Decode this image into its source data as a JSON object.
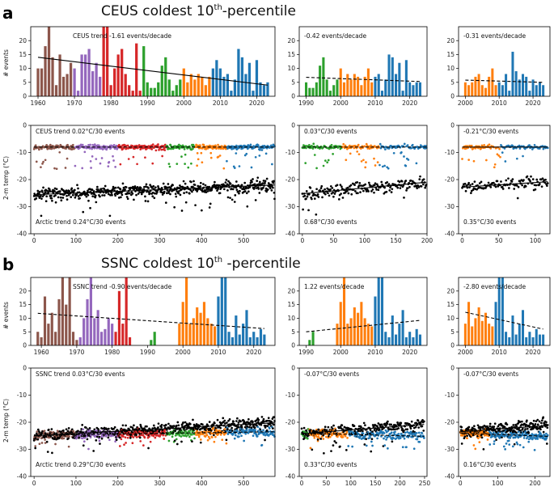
{
  "figure": {
    "panel_a_label": "a",
    "panel_b_label": "b",
    "title_a": {
      "pre": "CEUS coldest 10",
      "sup": "th",
      "post": "-percentile"
    },
    "title_b": {
      "pre": "SSNC coldest 10",
      "sup": "th",
      "post": " -percentile"
    },
    "ylabel_events": "# events",
    "ylabel_temp": "2-m temp (°C)"
  },
  "colors": {
    "brown": "#8c564b",
    "purple": "#9467bd",
    "red": "#d62728",
    "green": "#2ca02c",
    "orange": "#ff7f0e",
    "blue": "#1f77b4",
    "black": "#000000"
  },
  "chart_data": [
    {
      "id": "a-hist-full",
      "type": "bar",
      "section": "a",
      "row": "hist",
      "x_range": [
        1958,
        2025
      ],
      "ylim": [
        0,
        25
      ],
      "xticks": [
        1960,
        1970,
        1980,
        1990,
        2000,
        2010,
        2020
      ],
      "yticks": [
        0,
        5,
        10,
        15,
        20
      ],
      "annotation": "CEUS trend -1.61 events/decade",
      "trend": {
        "start": 14,
        "end": 4,
        "style": "solid"
      },
      "eras": [
        {
          "from": 1960,
          "to": 1969,
          "color": "brown"
        },
        {
          "from": 1970,
          "to": 1977,
          "color": "purple"
        },
        {
          "from": 1978,
          "to": 1988,
          "color": "red"
        },
        {
          "from": 1989,
          "to": 1999,
          "color": "green"
        },
        {
          "from": 2000,
          "to": 2007,
          "color": "orange"
        },
        {
          "from": 2008,
          "to": 2023,
          "color": "blue"
        }
      ],
      "years": [
        1960,
        1961,
        1962,
        1963,
        1964,
        1965,
        1966,
        1967,
        1968,
        1969,
        1970,
        1971,
        1972,
        1973,
        1974,
        1975,
        1976,
        1977,
        1978,
        1979,
        1980,
        1981,
        1982,
        1983,
        1984,
        1985,
        1986,
        1987,
        1988,
        1989,
        1990,
        1991,
        1992,
        1993,
        1994,
        1995,
        1996,
        1997,
        1998,
        1999,
        2000,
        2001,
        2002,
        2003,
        2004,
        2005,
        2006,
        2007,
        2008,
        2009,
        2010,
        2011,
        2012,
        2013,
        2014,
        2015,
        2016,
        2017,
        2018,
        2019,
        2020,
        2021,
        2022,
        2023
      ],
      "values": [
        10,
        10,
        18,
        25,
        14,
        4,
        15,
        7,
        8,
        12,
        10,
        2,
        15,
        15,
        17,
        9,
        12,
        7,
        25,
        25,
        4,
        10,
        15,
        17,
        8,
        4,
        2,
        19,
        2,
        18,
        5,
        3,
        3,
        5,
        11,
        14,
        6,
        2,
        4,
        6,
        10,
        5,
        8,
        6,
        8,
        7,
        4,
        7,
        10,
        13,
        10,
        7,
        8,
        2,
        6,
        17,
        14,
        8,
        12,
        2,
        13,
        5,
        4,
        5
      ]
    },
    {
      "id": "a-hist-mid",
      "type": "bar",
      "section": "a",
      "row": "hist",
      "x_range": [
        1988,
        2025
      ],
      "ylim": [
        0,
        25
      ],
      "xticks": [
        1990,
        2000,
        2010,
        2020
      ],
      "annotation": "-0.42 events/decade",
      "trend": {
        "start": 6.8,
        "end": 5.3,
        "style": "dashed"
      },
      "eras": [
        {
          "from": 1990,
          "to": 1999,
          "color": "green"
        },
        {
          "from": 2000,
          "to": 2009,
          "color": "orange"
        },
        {
          "from": 2010,
          "to": 2023,
          "color": "blue"
        }
      ],
      "years": [
        1990,
        1991,
        1992,
        1993,
        1994,
        1995,
        1996,
        1997,
        1998,
        1999,
        2000,
        2001,
        2002,
        2003,
        2004,
        2005,
        2006,
        2007,
        2008,
        2009,
        2010,
        2011,
        2012,
        2013,
        2014,
        2015,
        2016,
        2017,
        2018,
        2019,
        2020,
        2021,
        2022,
        2023
      ],
      "values": [
        5,
        3,
        3,
        5,
        11,
        14,
        6,
        2,
        4,
        6,
        10,
        5,
        8,
        6,
        8,
        7,
        4,
        7,
        10,
        5,
        7,
        8,
        2,
        6,
        15,
        14,
        8,
        12,
        2,
        13,
        5,
        4,
        5,
        5
      ]
    },
    {
      "id": "a-hist-late",
      "type": "bar",
      "section": "a",
      "row": "hist",
      "x_range": [
        1998,
        2025
      ],
      "ylim": [
        0,
        25
      ],
      "xticks": [
        2000,
        2010,
        2020
      ],
      "annotation": "-0.31 events/decade",
      "trend": {
        "start": 5.8,
        "end": 5.0,
        "style": "dashed"
      },
      "eras": [
        {
          "from": 2000,
          "to": 2009,
          "color": "orange"
        },
        {
          "from": 2010,
          "to": 2023,
          "color": "blue"
        }
      ],
      "years": [
        2000,
        2001,
        2002,
        2003,
        2004,
        2005,
        2006,
        2007,
        2008,
        2009,
        2010,
        2011,
        2012,
        2013,
        2014,
        2015,
        2016,
        2017,
        2018,
        2019,
        2020,
        2021,
        2022,
        2023
      ],
      "values": [
        5,
        4,
        5,
        7,
        8,
        4,
        3,
        7,
        10,
        4,
        5,
        4,
        8,
        2,
        16,
        9,
        6,
        8,
        7,
        2,
        6,
        4,
        5,
        4
      ]
    },
    {
      "id": "a-temp-full",
      "type": "scatter",
      "section": "a",
      "row": "temp",
      "x_range": [
        -8,
        575
      ],
      "ylim": [
        -40,
        0
      ],
      "xticks": [
        0,
        100,
        200,
        300,
        400,
        500
      ],
      "yticks": [
        -40,
        -30,
        -20,
        -10,
        0
      ],
      "n": 575,
      "ceus_level": -8,
      "arctic_start": -25.6,
      "arctic_end": -22.0,
      "ceus_trend_style": "dashed",
      "arctic_trend_style": "solid",
      "ceus_label": "CEUS trend 0.02°C/30 events",
      "arctic_label": "Arctic trend 0.24°C/30 events",
      "segments": [
        {
          "to": 0.17,
          "color": "brown"
        },
        {
          "to": 0.35,
          "color": "purple"
        },
        {
          "to": 0.55,
          "color": "red"
        },
        {
          "to": 0.67,
          "color": "green"
        },
        {
          "to": 0.8,
          "color": "orange"
        },
        {
          "to": 1.0,
          "color": "blue"
        }
      ],
      "seed": 11
    },
    {
      "id": "a-temp-mid",
      "type": "scatter",
      "section": "a",
      "row": "temp",
      "x_range": [
        -5,
        200
      ],
      "ylim": [
        -40,
        0
      ],
      "xticks": [
        0,
        50,
        100,
        150,
        200
      ],
      "n": 200,
      "ceus_level": -8,
      "arctic_start": -25.2,
      "arctic_end": -21.0,
      "ceus_trend_style": "dashed",
      "arctic_trend_style": "solid",
      "ceus_label": "0.03°C/30 events",
      "arctic_label": "0.68°C/30 events",
      "segments": [
        {
          "to": 0.32,
          "color": "green"
        },
        {
          "to": 0.62,
          "color": "orange"
        },
        {
          "to": 1.0,
          "color": "blue"
        }
      ],
      "seed": 23
    },
    {
      "id": "a-temp-late",
      "type": "scatter",
      "section": "a",
      "row": "temp",
      "x_range": [
        -5,
        120
      ],
      "ylim": [
        -40,
        0
      ],
      "xticks": [
        0,
        50,
        100
      ],
      "n": 118,
      "ceus_level": -8,
      "arctic_start": -22.8,
      "arctic_end": -20.8,
      "ceus_trend_style": "solid",
      "arctic_trend_style": "solid",
      "ceus_label": "-0.21°C/30 events",
      "arctic_label": "0.35°C/30 events",
      "segments": [
        {
          "to": 0.45,
          "color": "orange"
        },
        {
          "to": 1.0,
          "color": "blue"
        }
      ],
      "seed": 37
    },
    {
      "id": "b-hist-full",
      "type": "bar",
      "section": "b",
      "row": "hist",
      "x_range": [
        1957,
        2026
      ],
      "ylim": [
        0,
        25
      ],
      "xticks": [
        1960,
        1970,
        1980,
        1990,
        2000,
        2010,
        2020
      ],
      "yticks": [
        0,
        5,
        10,
        15,
        20
      ],
      "annotation": "SSNC trend -0.90 events/decade",
      "trend": {
        "start": 11.8,
        "end": 6.2,
        "style": "dashed"
      },
      "eras": [
        {
          "from": 1959,
          "to": 1970,
          "color": "brown"
        },
        {
          "from": 1971,
          "to": 1980,
          "color": "purple"
        },
        {
          "from": 1981,
          "to": 1985,
          "color": "red"
        },
        {
          "from": 1986,
          "to": 1998,
          "color": "green"
        },
        {
          "from": 1999,
          "to": 2009,
          "color": "orange"
        },
        {
          "from": 2010,
          "to": 2023,
          "color": "blue"
        }
      ],
      "years": [
        1959,
        1960,
        1961,
        1962,
        1963,
        1964,
        1965,
        1966,
        1967,
        1968,
        1969,
        1970,
        1971,
        1972,
        1973,
        1974,
        1975,
        1976,
        1977,
        1978,
        1979,
        1980,
        1981,
        1982,
        1983,
        1984,
        1985,
        1986,
        1987,
        1988,
        1989,
        1990,
        1991,
        1992,
        1993,
        1994,
        1995,
        1996,
        1997,
        1998,
        1999,
        2000,
        2001,
        2002,
        2003,
        2004,
        2005,
        2006,
        2007,
        2008,
        2009,
        2010,
        2011,
        2012,
        2013,
        2014,
        2015,
        2016,
        2017,
        2018,
        2019,
        2020,
        2021,
        2022,
        2023
      ],
      "values": [
        5,
        3,
        18,
        8,
        12,
        5,
        17,
        25,
        15,
        25,
        5,
        2,
        3,
        10,
        17,
        25,
        10,
        13,
        5,
        6,
        10,
        8,
        5,
        20,
        8,
        25,
        3,
        0,
        0,
        0,
        0,
        0,
        2,
        5,
        0,
        0,
        0,
        0,
        0,
        0,
        8,
        16,
        25,
        8,
        10,
        14,
        12,
        16,
        10,
        8,
        7,
        18,
        25,
        25,
        5,
        3,
        11,
        4,
        8,
        13,
        3,
        5,
        3,
        6,
        4
      ]
    },
    {
      "id": "b-hist-mid",
      "type": "bar",
      "section": "b",
      "row": "hist",
      "x_range": [
        1988,
        2025
      ],
      "ylim": [
        0,
        25
      ],
      "xticks": [
        1990,
        2000,
        2010,
        2020
      ],
      "annotation": "1.22 events/decade",
      "trend": {
        "start": 5.0,
        "end": 9.2,
        "style": "dashed"
      },
      "eras": [
        {
          "from": 1990,
          "to": 1998,
          "color": "green"
        },
        {
          "from": 1999,
          "to": 2009,
          "color": "orange"
        },
        {
          "from": 2010,
          "to": 2023,
          "color": "blue"
        }
      ],
      "years": [
        1990,
        1991,
        1992,
        1993,
        1994,
        1995,
        1996,
        1997,
        1998,
        1999,
        2000,
        2001,
        2002,
        2003,
        2004,
        2005,
        2006,
        2007,
        2008,
        2009,
        2010,
        2011,
        2012,
        2013,
        2014,
        2015,
        2016,
        2017,
        2018,
        2019,
        2020,
        2021,
        2022,
        2023
      ],
      "values": [
        0,
        2,
        5,
        0,
        0,
        0,
        0,
        0,
        0,
        8,
        16,
        25,
        8,
        10,
        14,
        12,
        16,
        10,
        8,
        7,
        18,
        25,
        25,
        5,
        3,
        11,
        4,
        8,
        13,
        3,
        5,
        3,
        6,
        4
      ]
    },
    {
      "id": "b-hist-late",
      "type": "bar",
      "section": "b",
      "row": "hist",
      "x_range": [
        1998,
        2025
      ],
      "ylim": [
        0,
        25
      ],
      "xticks": [
        2000,
        2010,
        2020
      ],
      "annotation": "-2.80 events/decade",
      "trend": {
        "start": 12.2,
        "end": 6.0,
        "style": "dashed"
      },
      "eras": [
        {
          "from": 2000,
          "to": 2008,
          "color": "orange"
        },
        {
          "from": 2009,
          "to": 2023,
          "color": "blue"
        }
      ],
      "years": [
        2000,
        2001,
        2002,
        2003,
        2004,
        2005,
        2006,
        2007,
        2008,
        2009,
        2010,
        2011,
        2012,
        2013,
        2014,
        2015,
        2016,
        2017,
        2018,
        2019,
        2020,
        2021,
        2022,
        2023
      ],
      "values": [
        8,
        16,
        7,
        10,
        14,
        9,
        12,
        8,
        7,
        16,
        25,
        25,
        5,
        3,
        11,
        4,
        8,
        13,
        3,
        5,
        3,
        6,
        4,
        4
      ]
    },
    {
      "id": "b-temp-full",
      "type": "scatter",
      "section": "b",
      "row": "temp",
      "x_range": [
        -8,
        575
      ],
      "ylim": [
        -40,
        0
      ],
      "xticks": [
        0,
        100,
        200,
        300,
        400,
        500
      ],
      "yticks": [
        -40,
        -30,
        -20,
        -10,
        0
      ],
      "n": 575,
      "ceus_level": -24.8,
      "ceus_end": -23.5,
      "arctic_start": -25.0,
      "arctic_end": -20.2,
      "ceus_trend_style": "dashed",
      "arctic_trend_style": "solid",
      "overlap": true,
      "ceus_label": "SSNC trend 0.03°C/30 events",
      "arctic_label": "Arctic trend 0.29°C/30 events",
      "segments": [
        {
          "to": 0.17,
          "color": "brown"
        },
        {
          "to": 0.35,
          "color": "purple"
        },
        {
          "to": 0.55,
          "color": "red"
        },
        {
          "to": 0.67,
          "color": "green"
        },
        {
          "to": 0.8,
          "color": "orange"
        },
        {
          "to": 1.0,
          "color": "blue"
        }
      ],
      "seed": 53
    },
    {
      "id": "b-temp-mid",
      "type": "scatter",
      "section": "b",
      "row": "temp",
      "x_range": [
        -5,
        255
      ],
      "ylim": [
        -40,
        0
      ],
      "xticks": [
        0,
        50,
        100,
        150,
        200,
        250
      ],
      "n": 250,
      "ceus_level": -24.0,
      "ceus_end": -25.2,
      "arctic_start": -24.2,
      "arctic_end": -20.8,
      "ceus_trend_style": "dashed",
      "arctic_trend_style": "solid",
      "overlap": true,
      "ceus_label": "-0.07°C/30 events",
      "arctic_label": "0.33°C/30 events",
      "segments": [
        {
          "to": 0.06,
          "color": "green"
        },
        {
          "to": 0.38,
          "color": "orange"
        },
        {
          "to": 1.0,
          "color": "blue"
        }
      ],
      "seed": 71
    },
    {
      "id": "b-temp-late",
      "type": "scatter",
      "section": "b",
      "row": "temp",
      "x_range": [
        -5,
        240
      ],
      "ylim": [
        -40,
        0
      ],
      "xticks": [
        0,
        100,
        200
      ],
      "n": 235,
      "ceus_level": -24.0,
      "ceus_end": -25.2,
      "arctic_start": -23.5,
      "arctic_end": -21.2,
      "ceus_trend_style": "dashed",
      "arctic_trend_style": "solid",
      "overlap": true,
      "ceus_label": "-0.07°C/30 events",
      "arctic_label": "0.16°C/30 events",
      "segments": [
        {
          "to": 0.33,
          "color": "orange"
        },
        {
          "to": 1.0,
          "color": "blue"
        }
      ],
      "seed": 89
    }
  ]
}
